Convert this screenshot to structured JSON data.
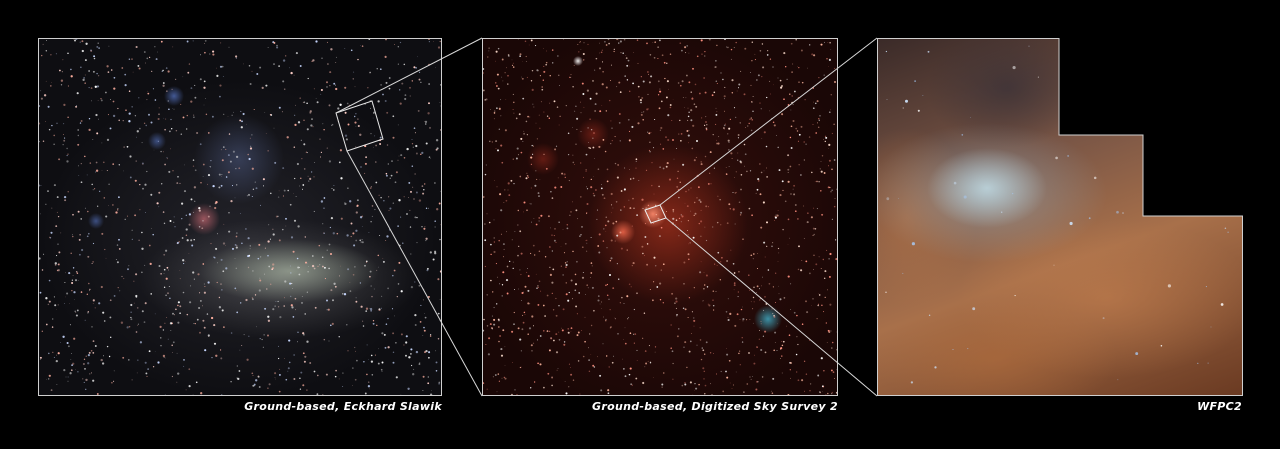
{
  "panels": [
    {
      "caption": "Ground-based, Eckhard Slawik"
    },
    {
      "caption": "Ground-based, Digitized Sky Survey 2"
    },
    {
      "caption": "WFPC2"
    }
  ]
}
